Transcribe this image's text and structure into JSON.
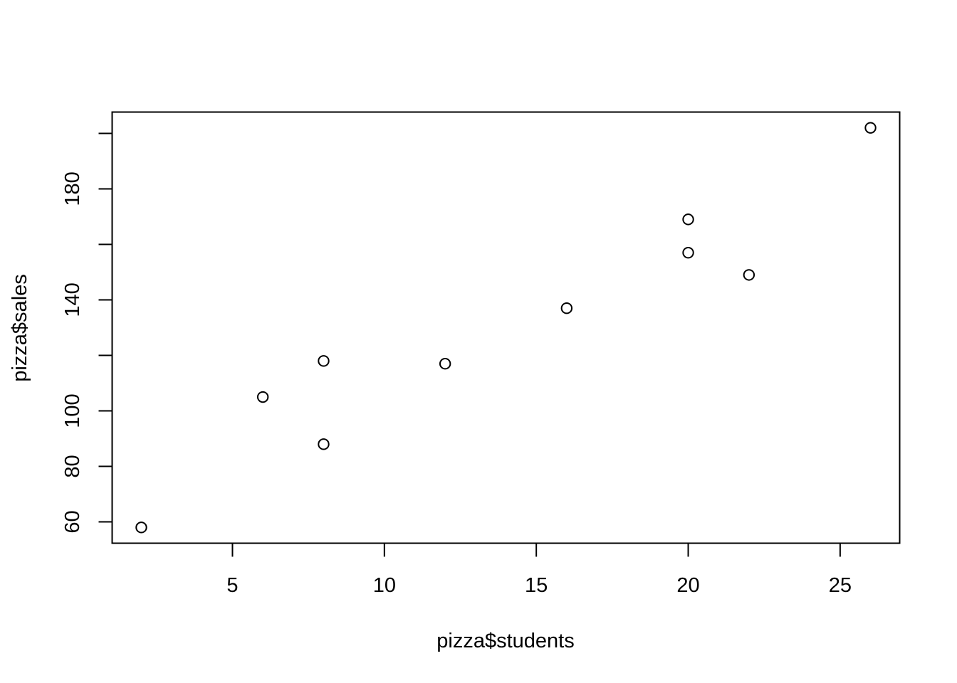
{
  "chart_data": {
    "type": "scatter",
    "xlabel": "pizza$students",
    "ylabel": "pizza$sales",
    "xlim": [
      1.04,
      26.96
    ],
    "ylim": [
      52.32,
      207.68
    ],
    "x_ticks": [
      5,
      10,
      15,
      20,
      25
    ],
    "x_tick_labels": [
      "5",
      "10",
      "15",
      "20",
      "25"
    ],
    "y_ticks": [
      60,
      80,
      100,
      120,
      140,
      160,
      180,
      200
    ],
    "y_tick_labels": [
      "60",
      "80",
      "100",
      "",
      "140",
      "",
      "180",
      ""
    ],
    "marker": "open-circle",
    "grid": false,
    "legend": "none",
    "points": [
      {
        "x": 2,
        "y": 58
      },
      {
        "x": 6,
        "y": 105
      },
      {
        "x": 8,
        "y": 88
      },
      {
        "x": 8,
        "y": 118
      },
      {
        "x": 12,
        "y": 117
      },
      {
        "x": 16,
        "y": 137
      },
      {
        "x": 20,
        "y": 157
      },
      {
        "x": 20,
        "y": 169
      },
      {
        "x": 22,
        "y": 149
      },
      {
        "x": 26,
        "y": 202
      }
    ]
  }
}
